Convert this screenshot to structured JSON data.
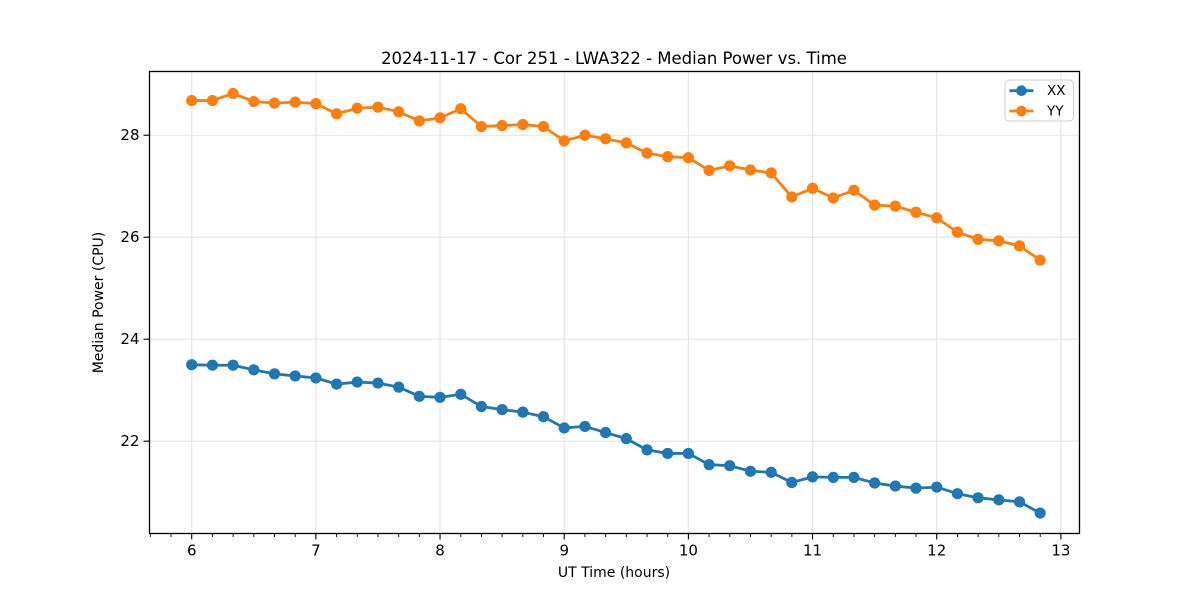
{
  "figure": {
    "background": "#ffffff",
    "text_color": "#000000",
    "grid_color": "#e4e4e4",
    "spine_color": "#000000"
  },
  "chart_data": {
    "type": "line",
    "title": "2024-11-17 - Cor 251 - LWA322 - Median Power vs. Time",
    "xlabel": "UT Time (hours)",
    "ylabel": "Median Power (CPU)",
    "xlim": [
      5.66,
      13.15
    ],
    "ylim": [
      20.19,
      29.25
    ],
    "x_ticks": [
      6,
      7,
      8,
      9,
      10,
      11,
      12,
      13
    ],
    "y_ticks": [
      22,
      24,
      26,
      28
    ],
    "x_minor_tick_interval": 0.16667,
    "grid": true,
    "legend_position": "upper right",
    "marker": "circle",
    "x": [
      6.0,
      6.167,
      6.333,
      6.5,
      6.667,
      6.833,
      7.0,
      7.167,
      7.333,
      7.5,
      7.667,
      7.833,
      8.0,
      8.167,
      8.333,
      8.5,
      8.667,
      8.833,
      9.0,
      9.167,
      9.333,
      9.5,
      9.667,
      9.833,
      10.0,
      10.167,
      10.333,
      10.5,
      10.667,
      10.833,
      11.0,
      11.167,
      11.333,
      11.5,
      11.667,
      11.833,
      12.0,
      12.167,
      12.333,
      12.5,
      12.667,
      12.833
    ],
    "series": [
      {
        "name": "XX",
        "color": "#1f77b4",
        "values": [
          23.5,
          23.49,
          23.49,
          23.4,
          23.32,
          23.28,
          23.24,
          23.12,
          23.16,
          23.14,
          23.06,
          22.88,
          22.86,
          22.92,
          22.68,
          22.62,
          22.57,
          22.48,
          22.26,
          22.29,
          22.17,
          22.05,
          21.83,
          21.76,
          21.76,
          21.54,
          21.52,
          21.41,
          21.39,
          21.19,
          21.3,
          21.29,
          21.29,
          21.18,
          21.12,
          21.08,
          21.1,
          20.97,
          20.89,
          20.85,
          20.81,
          20.59
        ]
      },
      {
        "name": "YY",
        "color": "#ff7f0e",
        "values": [
          28.68,
          28.68,
          28.82,
          28.66,
          28.63,
          28.65,
          28.62,
          28.42,
          28.53,
          28.55,
          28.46,
          28.28,
          28.34,
          28.52,
          28.17,
          28.19,
          28.21,
          28.17,
          27.89,
          28.0,
          27.93,
          27.85,
          27.65,
          27.58,
          27.56,
          27.31,
          27.4,
          27.32,
          27.26,
          26.79,
          26.96,
          26.77,
          26.92,
          26.63,
          26.61,
          26.49,
          26.38,
          26.1,
          25.96,
          25.93,
          25.83,
          25.55
        ]
      }
    ]
  }
}
